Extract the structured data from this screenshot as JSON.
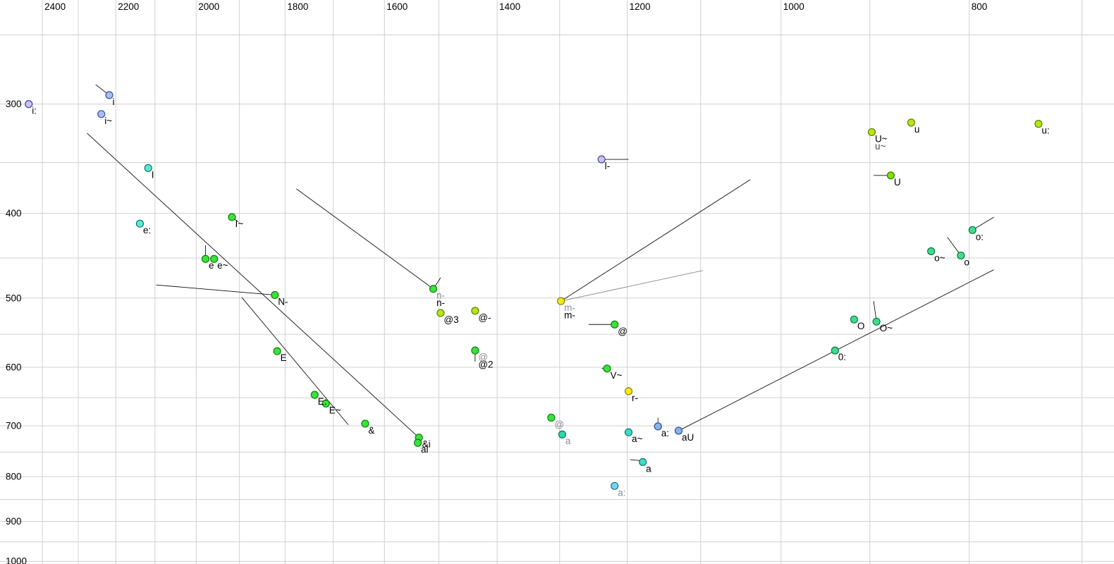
{
  "chart_data": {
    "type": "scatter",
    "title": "",
    "description": "Vowel formant chart: F2 (Hz, reversed log scale) vs F1 (Hz, log scale)",
    "x_axis": {
      "unit": "Hz",
      "scale": "log",
      "direction": "reversed",
      "tick_labels": [
        "2400",
        "2200",
        "2000",
        "1800",
        "1600",
        "1400",
        "1200",
        "1000",
        "800"
      ],
      "tick_values": [
        2400,
        2200,
        2000,
        1800,
        1600,
        1400,
        1200,
        1000,
        800
      ],
      "gridlines_hz": [
        2400,
        2300,
        2200,
        2100,
        2000,
        1900,
        1800,
        1700,
        1600,
        1500,
        1400,
        1300,
        1200,
        1100,
        1000,
        900,
        800,
        700
      ],
      "range_hz": [
        2530,
        675
      ],
      "grid": true
    },
    "y_axis": {
      "unit": "Hz",
      "scale": "log",
      "direction": "down",
      "tick_labels": [
        "300",
        "400",
        "500",
        "600",
        "700",
        "800",
        "900",
        "1000"
      ],
      "tick_values": [
        300,
        400,
        500,
        600,
        700,
        800,
        900,
        1000
      ],
      "gridlines_hz": [
        250,
        300,
        350,
        400,
        450,
        500,
        550,
        600,
        650,
        700,
        750,
        800,
        850,
        900,
        950,
        1000
      ],
      "range_hz": [
        227,
        1016
      ],
      "grid": true
    },
    "point_colors": {
      "lavender": {
        "fill": "#c9c3f2",
        "stroke": "#44449a"
      },
      "periwinkle": {
        "fill": "#aabcf0",
        "stroke": "#33559a"
      },
      "cyan": {
        "fill": "#5ce8d5",
        "stroke": "#0a7a6a"
      },
      "green": {
        "fill": "#3ce23c",
        "stroke": "#0a800a"
      },
      "greenyellow": {
        "fill": "#b0e818",
        "stroke": "#6a7a00"
      },
      "green2": {
        "fill": "#7ae000",
        "stroke": "#3a7a00"
      },
      "yellow": {
        "fill": "#f0ec14",
        "stroke": "#8a8200"
      },
      "springgreen": {
        "fill": "#40dc8c",
        "stroke": "#0a7a46"
      },
      "teal": {
        "fill": "#2cd8a8",
        "stroke": "#0a7a5a"
      },
      "turquoise": {
        "fill": "#3edcca",
        "stroke": "#0a7a6e"
      },
      "paleblue": {
        "fill": "#6fd8ea",
        "stroke": "#2a6a8a"
      },
      "lightblue": {
        "fill": "#8cb4ec",
        "stroke": "#2a4a9a"
      }
    },
    "label_colors": {
      "black": "#000000",
      "gray": "#8a8a9c",
      "dim": "#4a4a55"
    },
    "grid_color": "#d0d0d0",
    "line_colors": {
      "black": "#111111",
      "gray": "#888888"
    },
    "points": [
      {
        "label": "i:",
        "f2": 2439,
        "f1": 300,
        "color": "lavender"
      },
      {
        "label": "i",
        "f2": 2217,
        "f1": 293,
        "color": "periwinkle"
      },
      {
        "label": "i~",
        "f2": 2238,
        "f1": 308,
        "color": "periwinkle"
      },
      {
        "label": "I",
        "f2": 2117,
        "f1": 355,
        "color": "cyan"
      },
      {
        "label": "e:",
        "f2": 2138,
        "f1": 411,
        "color": "cyan"
      },
      {
        "label": "I~",
        "f2": 1917,
        "f1": 404,
        "color": "green"
      },
      {
        "label": "e",
        "f2": 1978,
        "f1": 451,
        "color": "green"
      },
      {
        "label": "e~",
        "f2": 1958,
        "f1": 451,
        "color": "green"
      },
      {
        "label": "N-",
        "f2": 1822,
        "f1": 496,
        "color": "green"
      },
      {
        "label": "E",
        "f2": 1817,
        "f1": 575,
        "color": "green"
      },
      {
        "label": "E:",
        "f2": 1738,
        "f1": 645,
        "color": "green"
      },
      {
        "label": "E~",
        "f2": 1715,
        "f1": 660,
        "color": "green"
      },
      {
        "label": "&",
        "f2": 1637,
        "f1": 696,
        "color": "green"
      },
      {
        "label": "&i",
        "f2": 1536,
        "f1": 722,
        "color": "green"
      },
      {
        "label": "ai",
        "f2": 1538,
        "f1": 732,
        "color": "green"
      },
      {
        "label": "n-",
        "label2": "n-",
        "label_color": "gray",
        "label2_color": "black",
        "f2": 1510,
        "f1": 488,
        "color": "green"
      },
      {
        "label": "@3",
        "f2": 1497,
        "f1": 520,
        "color": "greenyellow"
      },
      {
        "label": "@-",
        "f2": 1437,
        "f1": 517,
        "color": "greenyellow"
      },
      {
        "label": "@",
        "label2": "@2",
        "label_color": "gray",
        "label2_color": "black",
        "f2": 1437,
        "f1": 574,
        "color": "green"
      },
      {
        "label": "l-",
        "f2": 1237,
        "f1": 347,
        "color": "lavender"
      },
      {
        "label": "m-",
        "label2": "m-",
        "label_color": "gray",
        "label2_color": "black",
        "f2": 1298,
        "f1": 504,
        "color": "yellow"
      },
      {
        "label": "@",
        "f2": 1218,
        "f1": 536,
        "color": "green"
      },
      {
        "label": "V~",
        "f2": 1229,
        "f1": 602,
        "color": "green"
      },
      {
        "label": "r-",
        "f2": 1198,
        "f1": 639,
        "color": "yellow"
      },
      {
        "label": "@",
        "label_color": "gray",
        "f2": 1313,
        "f1": 685,
        "color": "green"
      },
      {
        "label": "a",
        "label_color": "gray",
        "f2": 1296,
        "f1": 716,
        "color": "teal"
      },
      {
        "label": "a~",
        "f2": 1198,
        "f1": 712,
        "color": "turquoise"
      },
      {
        "label": "a:",
        "f2": 1157,
        "f1": 701,
        "color": "lightblue"
      },
      {
        "label": "aU",
        "f2": 1129,
        "f1": 709,
        "color": "lightblue"
      },
      {
        "label": "a",
        "f2": 1178,
        "f1": 770,
        "color": "turquoise"
      },
      {
        "label": "a:",
        "label_color": "gray",
        "f2": 1218,
        "f1": 820,
        "color": "paleblue"
      },
      {
        "label": "U~",
        "label2": "u~",
        "label_color": "black",
        "label2_color": "dim",
        "f2": 898,
        "f1": 323,
        "color": "greenyellow"
      },
      {
        "label": "u",
        "f2": 857,
        "f1": 315,
        "color": "greenyellow"
      },
      {
        "label": "u:",
        "f2": 737,
        "f1": 316,
        "color": "greenyellow"
      },
      {
        "label": "U",
        "f2": 878,
        "f1": 362,
        "color": "green2"
      },
      {
        "label": "o:",
        "f2": 797,
        "f1": 418,
        "color": "springgreen"
      },
      {
        "label": "o~",
        "f2": 837,
        "f1": 442,
        "color": "springgreen"
      },
      {
        "label": "o",
        "f2": 808,
        "f1": 447,
        "color": "springgreen"
      },
      {
        "label": "O",
        "f2": 917,
        "f1": 529,
        "color": "springgreen"
      },
      {
        "label": "O~",
        "f2": 893,
        "f1": 532,
        "color": "springgreen"
      },
      {
        "label": "0:",
        "f2": 938,
        "f1": 574,
        "color": "springgreen"
      }
    ],
    "segments": [
      {
        "name": "i-tick",
        "from": [
          2253,
          285
        ],
        "to": [
          2217,
          293
        ],
        "color": "black"
      },
      {
        "name": "ai-trajectory",
        "from": [
          2276,
          324
        ],
        "to": [
          1536,
          722
        ],
        "color": "black"
      },
      {
        "name": "N-trajectory",
        "from": [
          2097,
          483
        ],
        "to": [
          1822,
          496
        ],
        "color": "black"
      },
      {
        "name": "I~-tick",
        "from": [
          1917,
          404
        ],
        "to": [
          1903,
          409
        ],
        "color": "black"
      },
      {
        "name": "e-tick",
        "from": [
          1978,
          435
        ],
        "to": [
          1978,
          451
        ],
        "color": "black"
      },
      {
        "name": "E-trajectory",
        "from": [
          1895,
          499
        ],
        "to": [
          1670,
          698
        ],
        "color": "black"
      },
      {
        "name": "n-trajectory",
        "from": [
          1776,
          375
        ],
        "to": [
          1510,
          488
        ],
        "color": "black"
      },
      {
        "name": "n-tick",
        "from": [
          1510,
          488
        ],
        "to": [
          1497,
          474
        ],
        "color": "black"
      },
      {
        "name": "@2-tick",
        "from": [
          1437,
          574
        ],
        "to": [
          1437,
          591
        ],
        "color": "black"
      },
      {
        "name": "l-bar",
        "from": [
          1237,
          347
        ],
        "to": [
          1198,
          347
        ],
        "color": "black"
      },
      {
        "name": "m-trajectory",
        "from": [
          1298,
          504
        ],
        "to": [
          1037,
          366
        ],
        "color": "black"
      },
      {
        "name": "m-trajectory-gray",
        "from": [
          1298,
          504
        ],
        "to": [
          1097,
          465
        ],
        "color": "gray"
      },
      {
        "name": "@-bar",
        "from": [
          1256,
          536
        ],
        "to": [
          1218,
          536
        ],
        "color": "black"
      },
      {
        "name": "V~-tick",
        "from": [
          1237,
          602
        ],
        "to": [
          1229,
          602
        ],
        "color": "black"
      },
      {
        "name": "r--tick",
        "from": [
          1198,
          632
        ],
        "to": [
          1198,
          639
        ],
        "color": "black"
      },
      {
        "name": "a:-tick",
        "from": [
          1157,
          685
        ],
        "to": [
          1157,
          701
        ],
        "color": "black"
      },
      {
        "name": "aU-trajectory",
        "from": [
          1129,
          709
        ],
        "to": [
          777,
          464
        ],
        "color": "black"
      },
      {
        "name": "a-tick",
        "from": [
          1196,
          765
        ],
        "to": [
          1182,
          767
        ],
        "color": "black"
      },
      {
        "name": "a-gray-tick",
        "from": [
          1296,
          716
        ],
        "to": [
          1296,
          722
        ],
        "color": "black"
      },
      {
        "name": "U-bar",
        "from": [
          896,
          362
        ],
        "to": [
          878,
          362
        ],
        "color": "black"
      },
      {
        "name": "o:-tick",
        "from": [
          797,
          418
        ],
        "to": [
          777,
          404
        ],
        "color": "black"
      },
      {
        "name": "o-tick",
        "from": [
          821,
          426
        ],
        "to": [
          808,
          447
        ],
        "color": "black"
      },
      {
        "name": "O~-tick",
        "from": [
          896,
          504
        ],
        "to": [
          893,
          532
        ],
        "color": "black"
      }
    ]
  }
}
